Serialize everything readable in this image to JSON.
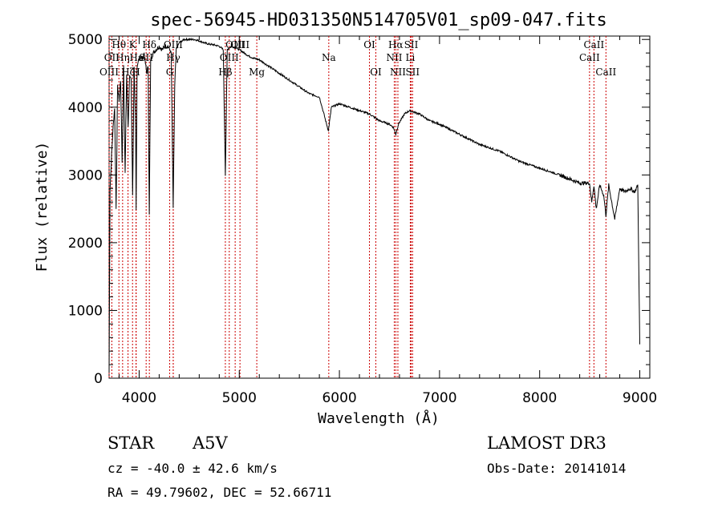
{
  "chart_data": {
    "type": "line",
    "title": "spec-56945-HD031350N514705V01_sp09-047.fits",
    "xlabel": "Wavelength (Å)",
    "ylabel": "Flux (relative)",
    "xlim": [
      3700,
      9100
    ],
    "ylim": [
      0,
      5050
    ],
    "xticks": [
      4000,
      5000,
      6000,
      7000,
      8000,
      9000
    ],
    "yticks": [
      0,
      1000,
      2000,
      3000,
      4000,
      5000
    ],
    "series": [
      {
        "name": "flux",
        "x": [
          3700,
          3710,
          3725,
          3740,
          3755,
          3770,
          3785,
          3800,
          3815,
          3830,
          3845,
          3860,
          3875,
          3890,
          3905,
          3920,
          3935,
          3950,
          3965,
          3970,
          3980,
          3995,
          4010,
          4030,
          4050,
          4075,
          4090,
          4101,
          4115,
          4140,
          4170,
          4200,
          4230,
          4260,
          4290,
          4320,
          4340,
          4355,
          4370,
          4400,
          4450,
          4500,
          4550,
          4600,
          4650,
          4700,
          4750,
          4800,
          4840,
          4861,
          4880,
          4920,
          4960,
          5000,
          5050,
          5100,
          5150,
          5200,
          5300,
          5400,
          5500,
          5600,
          5700,
          5800,
          5890,
          5920,
          6000,
          6100,
          6200,
          6300,
          6400,
          6500,
          6540,
          6563,
          6590,
          6650,
          6700,
          6800,
          6900,
          7000,
          7200,
          7400,
          7600,
          7800,
          8000,
          8200,
          8400,
          8498,
          8520,
          8542,
          8565,
          8600,
          8640,
          8662,
          8690,
          8750,
          8800,
          8850,
          8900,
          8950,
          8980,
          9000
        ],
        "y": [
          80,
          2800,
          3300,
          3700,
          4000,
          2500,
          4300,
          4100,
          4400,
          3200,
          4600,
          3000,
          4500,
          3700,
          4500,
          4400,
          2700,
          4600,
          3700,
          2500,
          4550,
          4700,
          4750,
          4700,
          4800,
          4500,
          4600,
          2400,
          4700,
          4800,
          4850,
          4900,
          4850,
          4900,
          4900,
          4800,
          2500,
          4300,
          4850,
          4950,
          5000,
          5000,
          5000,
          4980,
          4950,
          4930,
          4920,
          4900,
          4850,
          3000,
          4850,
          4900,
          4880,
          4850,
          4800,
          4750,
          4720,
          4700,
          4600,
          4500,
          4400,
          4300,
          4200,
          4150,
          3650,
          4000,
          4050,
          4000,
          3950,
          3900,
          3800,
          3750,
          3700,
          3600,
          3750,
          3900,
          3950,
          3900,
          3800,
          3750,
          3600,
          3450,
          3350,
          3200,
          3100,
          3000,
          2880,
          2880,
          2600,
          2850,
          2500,
          2850,
          2700,
          2400,
          2850,
          2350,
          2800,
          2750,
          2800,
          2750,
          2850,
          500
        ]
      }
    ],
    "line_markers": [
      {
        "label": "Hθ",
        "x": 3798,
        "row": 1
      },
      {
        "label": "OII",
        "x": 3727,
        "row": 2
      },
      {
        "label": "OIII",
        "x": 3700,
        "row": 3
      },
      {
        "label": "Hη",
        "x": 3835,
        "row": 2
      },
      {
        "label": "Hζ",
        "x": 3889,
        "row": 3
      },
      {
        "label": "K",
        "x": 3934,
        "row": 1
      },
      {
        "label": "Hε",
        "x": 3970,
        "row": 2
      },
      {
        "label": "H",
        "x": 3969,
        "row": 3
      },
      {
        "label": "Hδ",
        "x": 4102,
        "row": 1
      },
      {
        "label": "SII",
        "x": 4070,
        "row": 2
      },
      {
        "label": "G",
        "x": 4305,
        "row": 3
      },
      {
        "label": "OIII",
        "x": 4340,
        "row": 1
      },
      {
        "label": "Hγ",
        "x": 4341,
        "row": 2
      },
      {
        "label": "Hβ",
        "x": 4861,
        "row": 3
      },
      {
        "label": "OIII",
        "x": 4959,
        "row": 1
      },
      {
        "label": "OIII",
        "x": 4900,
        "row": 2
      },
      {
        "label": "OIII",
        "x": 5007,
        "row": 1
      },
      {
        "label": "Mg",
        "x": 5175,
        "row": 3
      },
      {
        "label": "Na",
        "x": 5894,
        "row": 2
      },
      {
        "label": "OI",
        "x": 6300,
        "row": 1
      },
      {
        "label": "OI",
        "x": 6364,
        "row": 3
      },
      {
        "label": "Hα",
        "x": 6563,
        "row": 1
      },
      {
        "label": "NII",
        "x": 6548,
        "row": 2
      },
      {
        "label": "NII",
        "x": 6584,
        "row": 3
      },
      {
        "label": "SII",
        "x": 6717,
        "row": 1
      },
      {
        "label": "Li",
        "x": 6708,
        "row": 2
      },
      {
        "label": "SII",
        "x": 6731,
        "row": 3
      },
      {
        "label": "CaII",
        "x": 8542,
        "row": 1
      },
      {
        "label": "CaII",
        "x": 8498,
        "row": 2
      },
      {
        "label": "CaII",
        "x": 8662,
        "row": 3
      }
    ],
    "marker_color": "#cc0000"
  },
  "info": {
    "object_class": "STAR",
    "subclass": "A5V",
    "survey": "LAMOST DR3",
    "cz": "cz = -40.0 ± 42.6 km/s",
    "obs_date": "Obs-Date: 20141014",
    "coords": "RA =  49.79602, DEC =  52.66711"
  }
}
